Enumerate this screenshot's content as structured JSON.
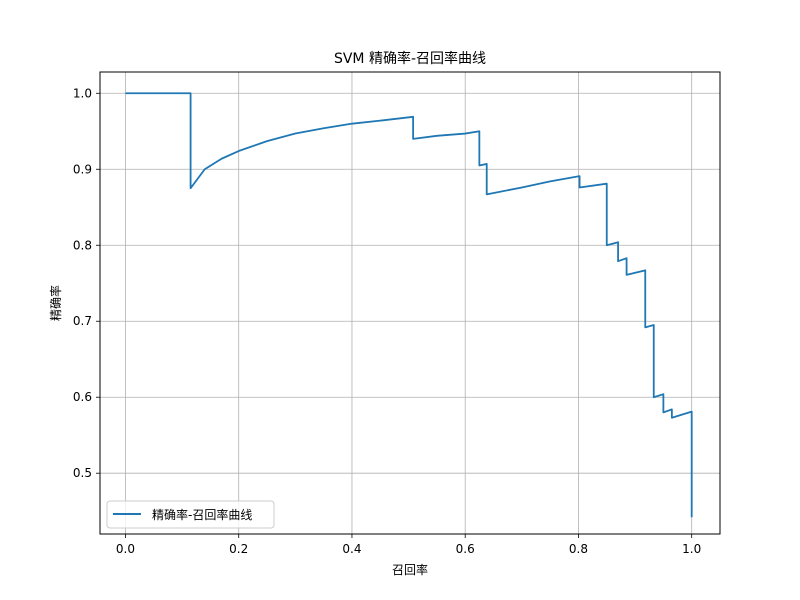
{
  "chart_data": {
    "type": "line",
    "title": "SVM 精确率-召回率曲线",
    "xlabel": "召回率",
    "ylabel": "精确率",
    "xlim": [
      -0.045,
      1.05
    ],
    "ylim": [
      0.42,
      1.028
    ],
    "xticks": [
      0.0,
      0.2,
      0.4,
      0.6,
      0.8,
      1.0
    ],
    "xtick_labels": [
      "0.0",
      "0.2",
      "0.4",
      "0.6",
      "0.8",
      "1.0"
    ],
    "yticks": [
      0.5,
      0.6,
      0.7,
      0.8,
      0.9,
      1.0
    ],
    "ytick_labels": [
      "0.5",
      "0.6",
      "0.7",
      "0.8",
      "0.9",
      "1.0"
    ],
    "grid": true,
    "legend_position": "lower-left",
    "series": [
      {
        "name": "精确率-召回率曲线",
        "color": "#1f77b4",
        "x": [
          0.0,
          0.115,
          0.115,
          0.14,
          0.17,
          0.2,
          0.25,
          0.3,
          0.35,
          0.4,
          0.45,
          0.508,
          0.508,
          0.55,
          0.6,
          0.625,
          0.625,
          0.638,
          0.638,
          0.7,
          0.75,
          0.802,
          0.802,
          0.85,
          0.85,
          0.87,
          0.87,
          0.885,
          0.885,
          0.918,
          0.918,
          0.933,
          0.933,
          0.95,
          0.95,
          0.965,
          0.965,
          1.0,
          1.0
        ],
        "y": [
          1.0,
          1.0,
          0.875,
          0.9,
          0.914,
          0.924,
          0.937,
          0.947,
          0.954,
          0.96,
          0.964,
          0.969,
          0.94,
          0.944,
          0.947,
          0.95,
          0.905,
          0.907,
          0.867,
          0.876,
          0.884,
          0.891,
          0.876,
          0.881,
          0.8,
          0.804,
          0.779,
          0.783,
          0.761,
          0.767,
          0.692,
          0.695,
          0.6,
          0.604,
          0.58,
          0.584,
          0.573,
          0.581,
          0.442
        ]
      }
    ]
  }
}
